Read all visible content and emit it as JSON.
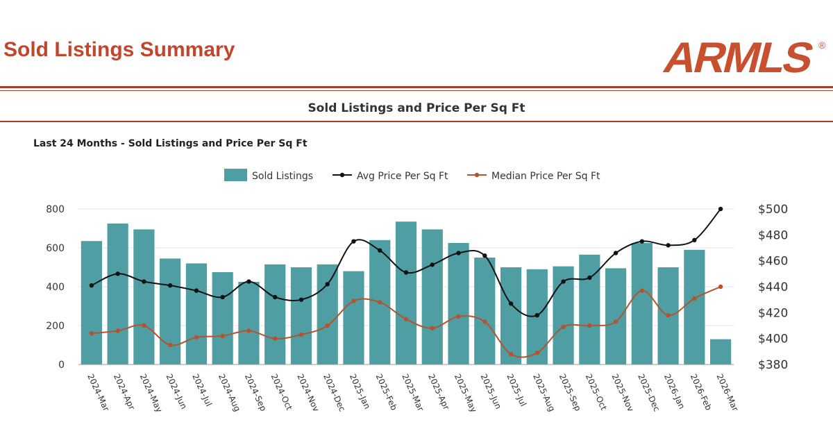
{
  "header": {
    "page_title": "Sold Listings Summary",
    "logo_text": "ARMLS",
    "logo_mark": "®"
  },
  "section": {
    "title": "Sold Listings and Price Per Sq Ft"
  },
  "chart_data": {
    "type": "bar",
    "title": "Last 24 Months - Sold Listings and Price Per Sq Ft",
    "categories": [
      "2024-Mar",
      "2024-Apr",
      "2024-May",
      "2024-Jun",
      "2024-Jul",
      "2024-Aug",
      "2024-Sep",
      "2024-Oct",
      "2024-Nov",
      "2024-Dec",
      "2025-Jan",
      "2025-Feb",
      "2025-Mar",
      "2025-Apr",
      "2025-May",
      "2025-Jun",
      "2025-Jul",
      "2025-Aug",
      "2025-Sep",
      "2025-Oct",
      "2025-Nov",
      "2025-Dec",
      "2026-Jan",
      "2026-Feb",
      "2026-Mar"
    ],
    "series": [
      {
        "name": "Sold Listings",
        "type": "bar",
        "axis": "left",
        "color": "#4f9ea4",
        "values": [
          635,
          725,
          695,
          545,
          520,
          475,
          425,
          515,
          500,
          515,
          480,
          640,
          735,
          695,
          625,
          550,
          500,
          490,
          505,
          565,
          495,
          625,
          500,
          590,
          130
        ]
      },
      {
        "name": "Avg Price Per Sq Ft",
        "type": "line",
        "axis": "right",
        "color": "#111111",
        "values": [
          441,
          450,
          444,
          441,
          437,
          432,
          444,
          432,
          430,
          442,
          475,
          468,
          451,
          457,
          466,
          464,
          427,
          418,
          444,
          447,
          466,
          475,
          472,
          476,
          500
        ]
      },
      {
        "name": "Median Price Per Sq Ft",
        "type": "line",
        "axis": "right",
        "color": "#b5532e",
        "values": [
          404,
          406,
          410,
          395,
          401,
          402,
          406,
          400,
          403,
          410,
          429,
          428,
          415,
          408,
          417,
          413,
          388,
          389,
          409,
          410,
          413,
          437,
          418,
          431,
          440
        ]
      }
    ],
    "y_left": {
      "ylim": [
        0,
        800
      ],
      "ticks": [
        "0",
        "200",
        "400",
        "600",
        "800"
      ]
    },
    "y_right": {
      "ylim": [
        380,
        500
      ],
      "ticks": [
        "$380",
        "$400",
        "$420",
        "$440",
        "$460",
        "$480",
        "$500"
      ]
    },
    "legend_position": "top-center",
    "grid": true
  }
}
